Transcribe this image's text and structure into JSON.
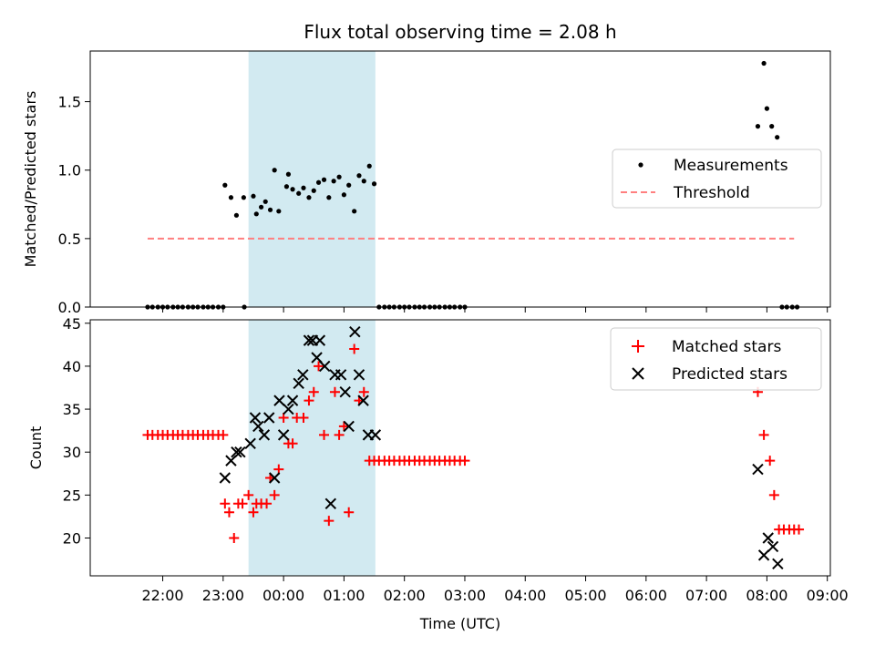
{
  "chart_data": {
    "type": "scatter",
    "title": "Flux total observing time = 2.08 h",
    "xlabel": "Time (UTC)",
    "x_unit": "hours after 00:00 UTC",
    "xlim": [
      -3.2,
      9.05
    ],
    "xticks": [
      {
        "v": -2,
        "label": "22:00"
      },
      {
        "v": -1,
        "label": "23:00"
      },
      {
        "v": 0,
        "label": "00:00"
      },
      {
        "v": 1,
        "label": "01:00"
      },
      {
        "v": 2,
        "label": "02:00"
      },
      {
        "v": 3,
        "label": "03:00"
      },
      {
        "v": 4,
        "label": "04:00"
      },
      {
        "v": 5,
        "label": "05:00"
      },
      {
        "v": 6,
        "label": "06:00"
      },
      {
        "v": 7,
        "label": "07:00"
      },
      {
        "v": 8,
        "label": "08:00"
      },
      {
        "v": 9,
        "label": "09:00"
      }
    ],
    "shaded_span": {
      "x0": -0.58,
      "x1": 1.52,
      "color": "#add8e6"
    },
    "subplots": [
      {
        "id": "ratio",
        "ylabel": "Matched/Predicted stars",
        "ylim": [
          0,
          1.87
        ],
        "yticks": [
          {
            "v": 0,
            "label": "0.0"
          },
          {
            "v": 0.5,
            "label": "0.5"
          },
          {
            "v": 1,
            "label": "1.0"
          },
          {
            "v": 1.5,
            "label": "1.5"
          }
        ],
        "legend": {
          "position": "center-right",
          "entries": [
            {
              "label": "Measurements",
              "marker": "dot",
              "color": "#000000"
            },
            {
              "label": "Threshold",
              "marker": "dashed-line",
              "color": "#ff7f7f"
            }
          ]
        },
        "threshold": {
          "y": 0.5,
          "x0": -2.25,
          "x1": 8.45,
          "color": "#ff7f7f"
        },
        "measurements": {
          "x": [
            -2.25,
            -2.17,
            -2.08,
            -2.0,
            -1.92,
            -1.83,
            -1.75,
            -1.67,
            -1.58,
            -1.5,
            -1.42,
            -1.33,
            -1.25,
            -1.17,
            -1.08,
            -1.0,
            -0.97,
            -0.87,
            -0.78,
            -0.66,
            -0.65,
            -0.5,
            -0.45,
            -0.37,
            -0.3,
            -0.22,
            -0.15,
            -0.08,
            0.05,
            0.08,
            0.15,
            0.25,
            0.33,
            0.42,
            0.5,
            0.58,
            0.67,
            0.75,
            0.83,
            0.92,
            1.0,
            1.08,
            1.17,
            1.25,
            1.33,
            1.42,
            1.5,
            1.58,
            1.67,
            1.75,
            1.83,
            1.92,
            2.0,
            2.08,
            2.17,
            2.25,
            2.33,
            2.42,
            2.5,
            2.58,
            2.67,
            2.75,
            2.83,
            2.92,
            3.0,
            7.85,
            7.95,
            8.0,
            8.08,
            8.17,
            8.25,
            8.33,
            8.42,
            8.5
          ],
          "y": [
            0,
            0,
            0,
            0,
            0,
            0,
            0,
            0,
            0,
            0,
            0,
            0,
            0,
            0,
            0,
            0,
            0.89,
            0.8,
            0.67,
            0.8,
            0.0,
            0.81,
            0.68,
            0.73,
            0.77,
            0.71,
            1.0,
            0.7,
            0.88,
            0.97,
            0.86,
            0.83,
            0.87,
            0.8,
            0.85,
            0.91,
            0.93,
            0.8,
            0.92,
            0.95,
            0.82,
            0.89,
            0.7,
            0.96,
            0.92,
            1.03,
            0.9,
            0,
            0,
            0,
            0,
            0,
            0,
            0,
            0,
            0,
            0,
            0,
            0,
            0,
            0,
            0,
            0,
            0,
            0,
            1.32,
            1.78,
            1.45,
            1.32,
            1.24,
            0,
            0,
            0,
            0
          ]
        }
      },
      {
        "id": "count",
        "ylabel": "Count",
        "ylim": [
          15.6,
          45.4
        ],
        "yticks": [
          {
            "v": 20,
            "label": "20"
          },
          {
            "v": 25,
            "label": "25"
          },
          {
            "v": 30,
            "label": "30"
          },
          {
            "v": 35,
            "label": "35"
          },
          {
            "v": 40,
            "label": "40"
          },
          {
            "v": 45,
            "label": "45"
          }
        ],
        "legend": {
          "position": "upper-right",
          "entries": [
            {
              "label": "Matched stars",
              "marker": "plus",
              "color": "#ff0000"
            },
            {
              "label": "Predicted stars",
              "marker": "x",
              "color": "#000000"
            }
          ]
        },
        "matched": {
          "x": [
            -2.25,
            -2.17,
            -2.08,
            -2.0,
            -1.92,
            -1.83,
            -1.75,
            -1.67,
            -1.58,
            -1.5,
            -1.42,
            -1.33,
            -1.25,
            -1.17,
            -1.08,
            -1.0,
            -0.97,
            -0.9,
            -0.82,
            -0.75,
            -0.68,
            -0.58,
            -0.5,
            -0.45,
            -0.37,
            -0.28,
            -0.22,
            -0.15,
            -0.08,
            0.0,
            0.08,
            0.15,
            0.22,
            0.33,
            0.42,
            0.5,
            0.58,
            0.67,
            0.75,
            0.85,
            0.92,
            1.0,
            1.08,
            1.17,
            1.25,
            1.33,
            1.42,
            1.5,
            1.58,
            1.67,
            1.75,
            1.83,
            1.92,
            2.0,
            2.08,
            2.17,
            2.25,
            2.33,
            2.42,
            2.5,
            2.58,
            2.67,
            2.75,
            2.83,
            2.92,
            3.0,
            7.85,
            7.95,
            8.05,
            8.12,
            8.2,
            8.28,
            8.37,
            8.45,
            8.53
          ],
          "y": [
            32,
            32,
            32,
            32,
            32,
            32,
            32,
            32,
            32,
            32,
            32,
            32,
            32,
            32,
            32,
            32,
            24,
            23,
            20,
            24,
            24,
            25,
            23,
            24,
            24,
            24,
            27,
            25,
            28,
            34,
            31,
            31,
            34,
            34,
            36,
            37,
            40,
            32,
            22,
            37,
            32,
            33,
            23,
            42,
            36,
            37,
            29,
            29,
            29,
            29,
            29,
            29,
            29,
            29,
            29,
            29,
            29,
            29,
            29,
            29,
            29,
            29,
            29,
            29,
            29,
            29,
            37,
            32,
            29,
            25,
            21,
            21,
            21,
            21,
            21
          ]
        },
        "predicted": {
          "x": [
            -0.97,
            -0.87,
            -0.78,
            -0.72,
            -0.55,
            -0.47,
            -0.42,
            -0.32,
            -0.24,
            -0.15,
            -0.07,
            0.0,
            0.08,
            0.15,
            0.25,
            0.32,
            0.42,
            0.48,
            0.55,
            0.6,
            0.68,
            0.78,
            0.85,
            0.95,
            1.02,
            1.08,
            1.18,
            1.25,
            1.32,
            1.4,
            1.52,
            7.85,
            7.95,
            8.02,
            8.1,
            8.18
          ],
          "y": [
            27,
            29,
            30,
            30,
            31,
            34,
            33,
            32,
            34,
            27,
            36,
            32,
            35,
            36,
            38,
            39,
            43,
            43,
            41,
            43,
            40,
            24,
            39,
            39,
            37,
            33,
            44,
            39,
            36,
            32,
            32,
            28,
            18,
            20,
            19,
            17
          ]
        }
      }
    ]
  }
}
